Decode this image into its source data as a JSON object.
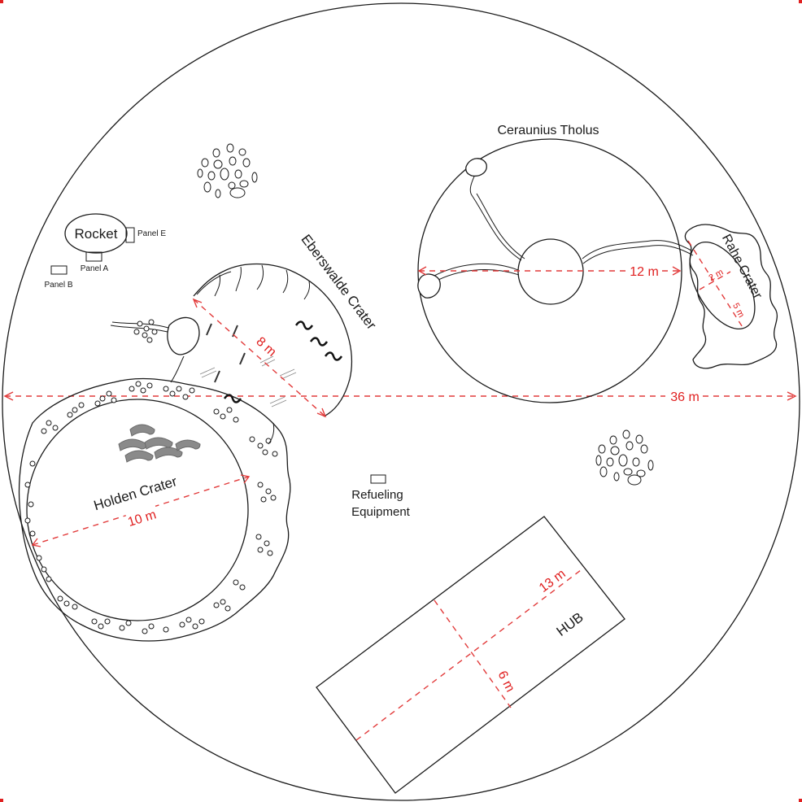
{
  "map": {
    "features": {
      "ceraunius": "Ceraunius Tholus",
      "rahe": "Rahe Crater",
      "eberswalde": "Eberswalde Crater",
      "holden": "Holden Crater",
      "hub": "HUB",
      "refueling_line1": "Refueling",
      "refueling_line2": "Equipment",
      "rocket": "Rocket",
      "panel_a": "Panel A",
      "panel_b": "Panel B",
      "panel_e": "Panel E"
    },
    "dimensions": {
      "arena": "36 m",
      "ceraunius": "12 m",
      "rahe_small": "2 m",
      "rahe_long": "5 m",
      "eberswalde": "8 m",
      "holden": "10 m",
      "hub_long": "13 m",
      "hub_short": "6 m"
    },
    "colors": {
      "ink": "#1a1a1a",
      "dimension": "#e02020",
      "rock_fill": "#ffffff",
      "dark_dunes": "#8a8a8a"
    }
  }
}
